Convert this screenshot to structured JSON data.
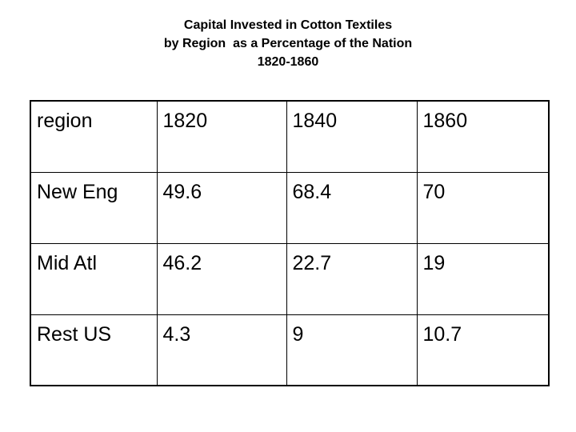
{
  "title": [
    "Capital Invested in Cotton Textiles",
    "by Region  as a Percentage of the Nation",
    "1820-1860"
  ],
  "table": {
    "header": [
      "region",
      "1820",
      "1840",
      "1860"
    ],
    "rows": [
      [
        "New Eng",
        "49.6",
        "68.4",
        "70"
      ],
      [
        "Mid Atl",
        "46.2",
        "22.7",
        "19"
      ],
      [
        "Rest US",
        "4.3",
        "9",
        "10.7"
      ]
    ]
  }
}
